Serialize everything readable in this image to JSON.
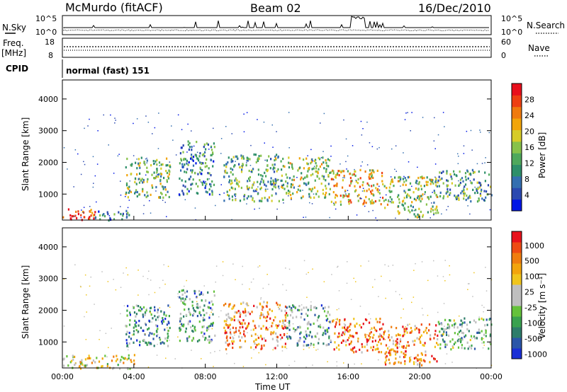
{
  "header": {
    "station": "McMurdo (fitACF)",
    "beam": "Beam 02",
    "date": "16/Dec/2010"
  },
  "noise_panel": {
    "left_label": "N.Sky",
    "right_label": "N.Search",
    "left_ticks": [
      "10^5",
      "10^0"
    ],
    "right_ticks": [
      "10^5",
      "10^0"
    ]
  },
  "freq_panel": {
    "left_label_1": "Freq.",
    "left_label_2": "[MHz]",
    "left_ticks": [
      "18",
      "8"
    ],
    "right_label": "Nave",
    "right_ticks": [
      "60",
      "0"
    ]
  },
  "cpid": {
    "label": "CPID",
    "value": "normal (fast) 151"
  },
  "chart_data": [
    {
      "type": "heatmap",
      "ylabel": "Slant Range [km]",
      "xlabel": "",
      "y_ticks": [
        "1000",
        "2000",
        "3000",
        "4000"
      ],
      "ylim": [
        180,
        4600
      ],
      "colorbar": {
        "label": "Power [dB]",
        "ticks": [
          "4",
          "8",
          "12",
          "16",
          "20",
          "24",
          "28"
        ],
        "colors": [
          "#0016e6",
          "#2b49b0",
          "#346fb0",
          "#2e8f6a",
          "#4fa85c",
          "#88c24a",
          "#d7cc28",
          "#f2a50b",
          "#f07a0e",
          "#ee3f12",
          "#e80f1c"
        ]
      },
      "echo_regions": [
        {
          "t0": 0.0,
          "t1": 1.8,
          "r0": 180,
          "r1": 600,
          "level": 0.9
        },
        {
          "t0": 1.8,
          "t1": 4.0,
          "r0": 200,
          "r1": 500,
          "level": 0.25
        },
        {
          "t0": 3.5,
          "t1": 6.0,
          "r0": 900,
          "r1": 2200,
          "level": 0.45
        },
        {
          "t0": 6.5,
          "t1": 8.5,
          "r0": 1000,
          "r1": 2700,
          "level": 0.3
        },
        {
          "t0": 9.0,
          "t1": 12.5,
          "r0": 800,
          "r1": 2300,
          "level": 0.4
        },
        {
          "t0": 12.5,
          "t1": 15.0,
          "r0": 900,
          "r1": 2200,
          "level": 0.5
        },
        {
          "t0": 15.0,
          "t1": 18.0,
          "r0": 700,
          "r1": 1800,
          "level": 0.65
        },
        {
          "t0": 18.0,
          "t1": 21.0,
          "r0": 300,
          "r1": 1600,
          "level": 0.5
        },
        {
          "t0": 21.0,
          "t1": 24.0,
          "r0": 800,
          "r1": 1800,
          "level": 0.35
        }
      ]
    },
    {
      "type": "heatmap",
      "ylabel": "Slant Range [km]",
      "xlabel": "Time UT",
      "x_ticks": [
        "00:00",
        "04:00",
        "08:00",
        "12:00",
        "16:00",
        "20:00",
        "00:00"
      ],
      "y_ticks": [
        "1000",
        "2000",
        "3000",
        "4000"
      ],
      "ylim": [
        180,
        4600
      ],
      "colorbar": {
        "label": "Velocity [m s⁻¹]",
        "ticks": [
          "1000",
          "500",
          "100",
          "25",
          "-25",
          "-100",
          "-500",
          "-1000"
        ],
        "colors": [
          "#1a2fd6",
          "#2b56a8",
          "#2e7d6a",
          "#3aa24f",
          "#65c23b",
          "#bfbfbf",
          "#bfbfbf",
          "#f0c51c",
          "#f2a40c",
          "#ef7d0f",
          "#ee4b14",
          "#e8121c"
        ]
      },
      "echo_regions": [
        {
          "t0": 0.0,
          "t1": 4.0,
          "r0": 180,
          "r1": 650,
          "level": 0.55
        },
        {
          "t0": 3.5,
          "t1": 6.0,
          "r0": 900,
          "r1": 2200,
          "level": 0.25
        },
        {
          "t0": 6.5,
          "t1": 8.5,
          "r0": 1000,
          "r1": 2700,
          "level": 0.3
        },
        {
          "t0": 9.0,
          "t1": 12.5,
          "r0": 800,
          "r1": 2300,
          "level": 0.75
        },
        {
          "t0": 12.5,
          "t1": 15.0,
          "r0": 900,
          "r1": 2200,
          "level": 0.3
        },
        {
          "t0": 15.0,
          "t1": 18.0,
          "r0": 700,
          "r1": 1800,
          "level": 0.8
        },
        {
          "t0": 18.0,
          "t1": 21.0,
          "r0": 300,
          "r1": 1600,
          "level": 0.78
        },
        {
          "t0": 21.0,
          "t1": 24.0,
          "r0": 800,
          "r1": 1800,
          "level": 0.35
        }
      ]
    }
  ]
}
